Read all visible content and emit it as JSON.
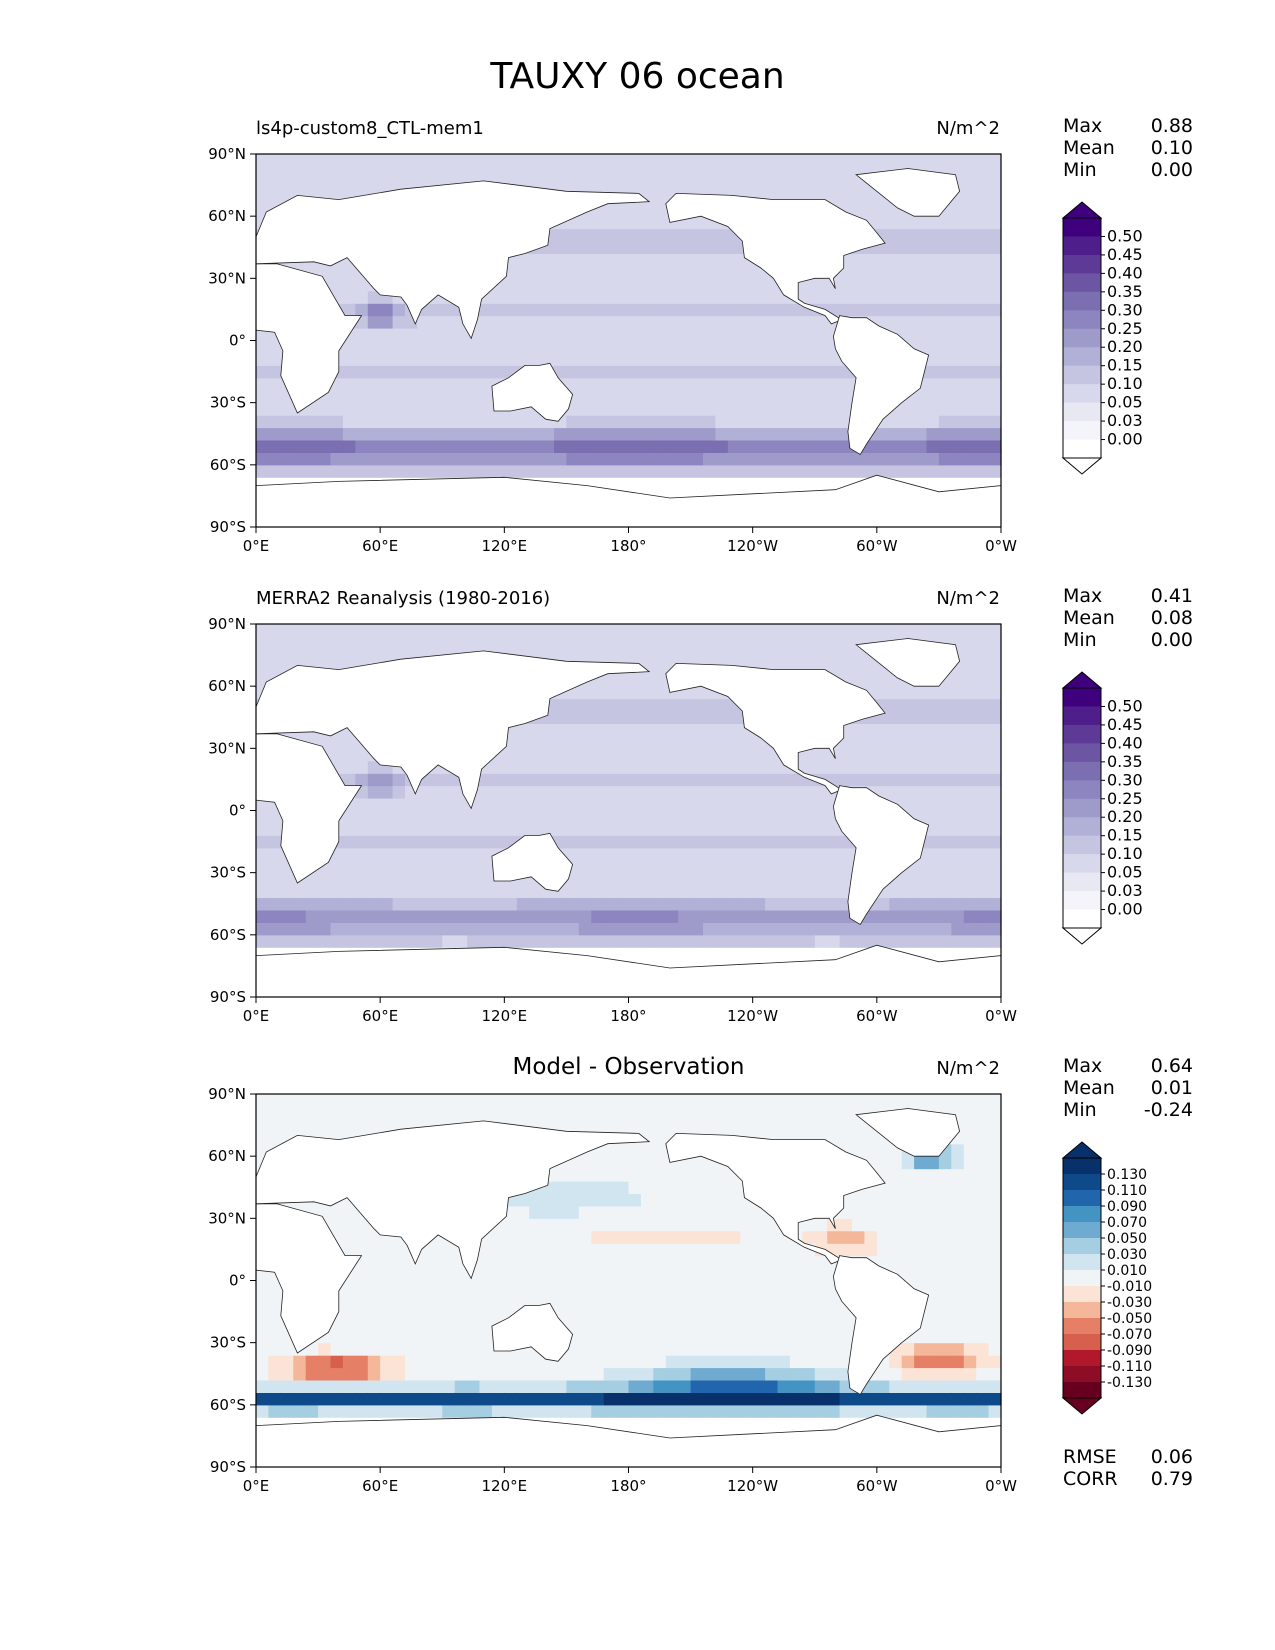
{
  "figure_title": "TAUXY 06 ocean",
  "chart_data": [
    {
      "type": "heatmap",
      "title": "ls4p-custom8_CTL-mem1",
      "units": "N/m^2",
      "x_ticks": [
        "0°E",
        "60°E",
        "120°E",
        "180°",
        "120°W",
        "60°W",
        "0°W"
      ],
      "y_ticks": [
        "90°N",
        "60°N",
        "30°N",
        "0°",
        "30°S",
        "60°S",
        "90°S"
      ],
      "xlim": [
        0,
        360
      ],
      "ylim": [
        -90,
        90
      ],
      "stats": [
        {
          "label": "Max",
          "value": "0.88"
        },
        {
          "label": "Mean",
          "value": "0.10"
        },
        {
          "label": "Min",
          "value": "0.00"
        }
      ],
      "colorbar": {
        "levels": [
          "0.50",
          "0.45",
          "0.40",
          "0.35",
          "0.30",
          "0.25",
          "0.20",
          "0.15",
          "0.10",
          "0.05",
          "0.03",
          "0.00"
        ],
        "colors": [
          "#3f007d",
          "#4e1e8a",
          "#5e3a97",
          "#6c56a4",
          "#7b6eb1",
          "#8c85bf",
          "#9e9bcb",
          "#b1b1d7",
          "#c5c5e2",
          "#d8d8ec",
          "#e8e8f3",
          "#f4f4fa",
          "#ffffff"
        ],
        "extend": "both"
      }
    },
    {
      "type": "heatmap",
      "title": "MERRA2 Reanalysis (1980-2016)",
      "units": "N/m^2",
      "x_ticks": [
        "0°E",
        "60°E",
        "120°E",
        "180°",
        "120°W",
        "60°W",
        "0°W"
      ],
      "y_ticks": [
        "90°N",
        "60°N",
        "30°N",
        "0°",
        "30°S",
        "60°S",
        "90°S"
      ],
      "xlim": [
        0,
        360
      ],
      "ylim": [
        -90,
        90
      ],
      "stats": [
        {
          "label": "Max",
          "value": "0.41"
        },
        {
          "label": "Mean",
          "value": "0.08"
        },
        {
          "label": "Min",
          "value": "0.00"
        }
      ],
      "colorbar": {
        "levels": [
          "0.50",
          "0.45",
          "0.40",
          "0.35",
          "0.30",
          "0.25",
          "0.20",
          "0.15",
          "0.10",
          "0.05",
          "0.03",
          "0.00"
        ],
        "colors": [
          "#3f007d",
          "#4e1e8a",
          "#5e3a97",
          "#6c56a4",
          "#7b6eb1",
          "#8c85bf",
          "#9e9bcb",
          "#b1b1d7",
          "#c5c5e2",
          "#d8d8ec",
          "#e8e8f3",
          "#f4f4fa",
          "#ffffff"
        ],
        "extend": "both"
      }
    },
    {
      "type": "heatmap",
      "title": "Model - Observation",
      "units": "N/m^2",
      "x_ticks": [
        "0°E",
        "60°E",
        "120°E",
        "180°",
        "120°W",
        "60°W",
        "0°W"
      ],
      "y_ticks": [
        "90°N",
        "60°N",
        "30°N",
        "0°",
        "30°S",
        "60°S",
        "90°S"
      ],
      "xlim": [
        0,
        360
      ],
      "ylim": [
        -90,
        90
      ],
      "stats": [
        {
          "label": "Max",
          "value": "0.64"
        },
        {
          "label": "Mean",
          "value": "0.01"
        },
        {
          "label": "Min",
          "value": "-0.24"
        }
      ],
      "extra_stats": [
        {
          "label": "RMSE",
          "value": "0.06"
        },
        {
          "label": "CORR",
          "value": "0.79"
        }
      ],
      "colorbar": {
        "levels": [
          "0.130",
          "0.110",
          "0.090",
          "0.070",
          "0.050",
          "0.030",
          "0.010",
          "-0.010",
          "-0.030",
          "-0.050",
          "-0.070",
          "-0.090",
          "-0.110",
          "-0.130"
        ],
        "colors": [
          "#08306b",
          "#0e4a8a",
          "#2166ac",
          "#4393c3",
          "#6fabd0",
          "#a6cee3",
          "#d1e5f0",
          "#f0f4f7",
          "#fbe3d6",
          "#f4b79a",
          "#e58067",
          "#d6604d",
          "#b2182b",
          "#8c0d25",
          "#67001f"
        ],
        "extend": "both"
      }
    }
  ]
}
